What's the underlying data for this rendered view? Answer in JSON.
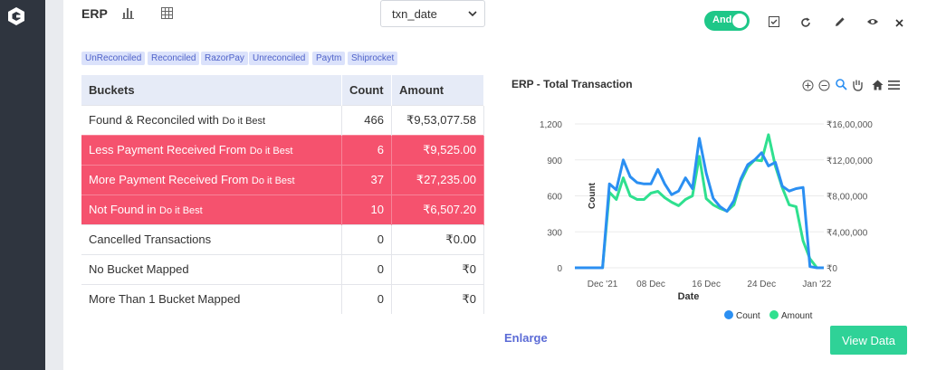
{
  "header": {
    "title": "ERP",
    "date_field": "txn_date",
    "toggle_label": "And"
  },
  "tags": [
    "UnReconciled",
    "Reconciled",
    "RazorPay",
    "Unreconciled",
    "Paytm",
    "Shiprocket"
  ],
  "table": {
    "headers": {
      "bucket": "Buckets",
      "count": "Count",
      "amount": "Amount"
    },
    "rows": [
      {
        "bucket": "Found & Reconciled with ",
        "party": "Do it Best",
        "count": "466",
        "amount": "₹9,53,077.58",
        "highlight": false
      },
      {
        "bucket": "Less Payment Received From ",
        "party": "Do it Best",
        "count": "6",
        "amount": "₹9,525.00",
        "highlight": true
      },
      {
        "bucket": "More Payment Received From ",
        "party": "Do it Best",
        "count": "37",
        "amount": "₹27,235.00",
        "highlight": true
      },
      {
        "bucket": "Not Found in ",
        "party": "Do it Best",
        "count": "10",
        "amount": "₹6,507.20",
        "highlight": true
      },
      {
        "bucket": "Cancelled Transactions",
        "party": "",
        "count": "0",
        "amount": "₹0.00",
        "highlight": false
      },
      {
        "bucket": "No Bucket Mapped",
        "party": "",
        "count": "0",
        "amount": "₹0",
        "highlight": false
      },
      {
        "bucket": "More Than 1 Bucket Mapped",
        "party": "",
        "count": "0",
        "amount": "₹0",
        "highlight": false
      }
    ]
  },
  "colors": {
    "count": "#2b8ff2",
    "amount": "#2fe08f",
    "highlight": "#f5526e",
    "accent": "#1ec788"
  },
  "chart_data": {
    "type": "line",
    "title": "ERP - Total Transaction",
    "xlabel": "Date",
    "ylabel_left": "Count",
    "ylabel_right": "Amount",
    "left_ticks": [
      "0",
      "300",
      "600",
      "900",
      "1,200"
    ],
    "right_ticks": [
      "₹0",
      "₹4,00,000",
      "₹8,00,000",
      "₹12,00,000",
      "₹16,00,000"
    ],
    "ylim_left": [
      0,
      1200
    ],
    "ylim_right": [
      0,
      1600000
    ],
    "x_ticks": [
      "Dec '21",
      "08 Dec",
      "16 Dec",
      "24 Dec",
      "Jan '22"
    ],
    "x_tick_dates": [
      "2021-12-01",
      "2021-12-08",
      "2021-12-16",
      "2021-12-24",
      "2022-01-01"
    ],
    "legend_position": "bottom",
    "dates": [
      "2021-11-27",
      "2021-11-28",
      "2021-11-29",
      "2021-11-30",
      "2021-12-01",
      "2021-12-02",
      "2021-12-03",
      "2021-12-04",
      "2021-12-05",
      "2021-12-06",
      "2021-12-07",
      "2021-12-08",
      "2021-12-09",
      "2021-12-10",
      "2021-12-11",
      "2021-12-12",
      "2021-12-13",
      "2021-12-14",
      "2021-12-15",
      "2021-12-16",
      "2021-12-17",
      "2021-12-18",
      "2021-12-19",
      "2021-12-20",
      "2021-12-21",
      "2021-12-22",
      "2021-12-23",
      "2021-12-24",
      "2021-12-25",
      "2021-12-26",
      "2021-12-27",
      "2021-12-28",
      "2021-12-29",
      "2021-12-30",
      "2021-12-31",
      "2022-01-01",
      "2022-01-02"
    ],
    "series": [
      {
        "name": "Count",
        "axis": "left",
        "values": [
          0,
          0,
          0,
          0,
          0,
          700,
          650,
          900,
          760,
          710,
          700,
          700,
          820,
          700,
          610,
          640,
          750,
          660,
          1080,
          790,
          580,
          510,
          470,
          560,
          740,
          860,
          900,
          960,
          850,
          880,
          680,
          640,
          660,
          670,
          10,
          0,
          0
        ]
      },
      {
        "name": "Amount",
        "axis": "right",
        "values": [
          0,
          0,
          0,
          0,
          0,
          840000,
          760000,
          1000000,
          800000,
          760000,
          760000,
          830000,
          850000,
          780000,
          730000,
          690000,
          760000,
          800000,
          1240000,
          770000,
          700000,
          660000,
          630000,
          700000,
          960000,
          1120000,
          1200000,
          1190000,
          1480000,
          1130000,
          890000,
          700000,
          680000,
          300000,
          100000,
          0,
          0
        ]
      }
    ]
  }
}
